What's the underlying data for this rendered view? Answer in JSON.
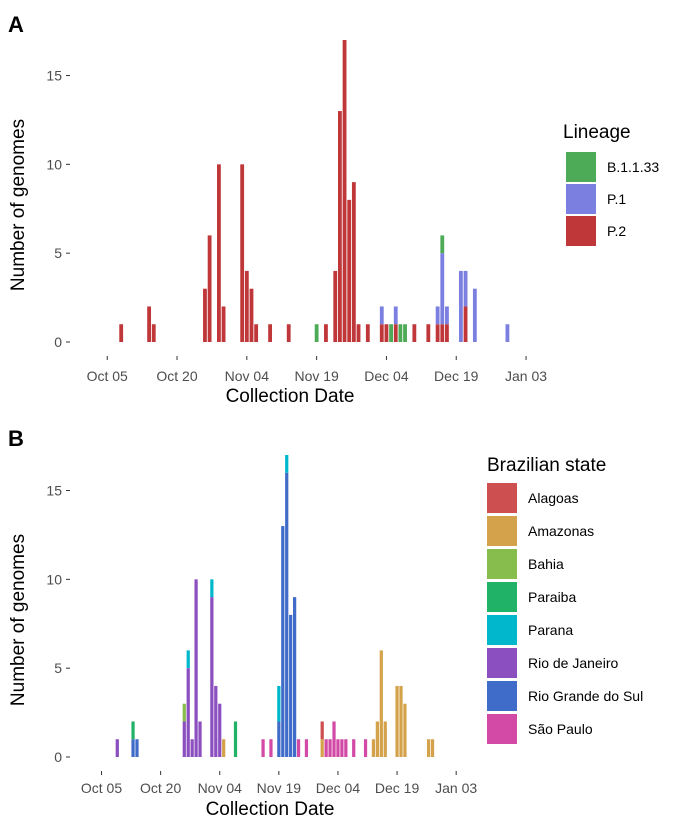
{
  "chart_data": [
    {
      "panel": "A",
      "type": "bar",
      "stacked": true,
      "xlabel": "Collection Date",
      "ylabel": "Number of genomes",
      "x_ticks": [
        "Oct 05",
        "Oct 20",
        "Nov 04",
        "Nov 19",
        "Dec 04",
        "Dec 19",
        "Jan 03"
      ],
      "y_ticks": [
        "0",
        "5",
        "10",
        "15"
      ],
      "ylim": [
        0,
        17
      ],
      "xlim": [
        "2020-09-27",
        "2021-01-06"
      ],
      "grid": false,
      "legend": {
        "title": "Lineage",
        "placement": "right",
        "entries": [
          {
            "label": "B.1.1.33",
            "color": "#4daa57"
          },
          {
            "label": "P.1",
            "color": "#7b7fe0"
          },
          {
            "label": "P.2",
            "color": "#c0373a"
          }
        ]
      },
      "bars": [
        {
          "date": "2020-10-08",
          "values": {
            "P.2": 1
          }
        },
        {
          "date": "2020-10-14",
          "values": {
            "P.2": 2
          }
        },
        {
          "date": "2020-10-15",
          "values": {
            "P.2": 1
          }
        },
        {
          "date": "2020-10-26",
          "values": {
            "P.2": 3
          }
        },
        {
          "date": "2020-10-27",
          "values": {
            "P.2": 6
          }
        },
        {
          "date": "2020-10-29",
          "values": {
            "P.2": 10
          }
        },
        {
          "date": "2020-10-30",
          "values": {
            "P.2": 2
          }
        },
        {
          "date": "2020-11-03",
          "values": {
            "P.2": 10
          }
        },
        {
          "date": "2020-11-04",
          "values": {
            "P.2": 4
          }
        },
        {
          "date": "2020-11-05",
          "values": {
            "P.2": 3
          }
        },
        {
          "date": "2020-11-06",
          "values": {
            "P.2": 1
          }
        },
        {
          "date": "2020-11-09",
          "values": {
            "P.2": 1
          }
        },
        {
          "date": "2020-11-13",
          "values": {
            "P.2": 1
          }
        },
        {
          "date": "2020-11-19",
          "values": {
            "B.1.1.33": 1
          }
        },
        {
          "date": "2020-11-21",
          "values": {
            "P.2": 1
          }
        },
        {
          "date": "2020-11-23",
          "values": {
            "P.2": 4
          }
        },
        {
          "date": "2020-11-24",
          "values": {
            "P.2": 13
          }
        },
        {
          "date": "2020-11-25",
          "values": {
            "P.2": 17
          }
        },
        {
          "date": "2020-11-26",
          "values": {
            "P.2": 8
          }
        },
        {
          "date": "2020-11-27",
          "values": {
            "P.2": 9
          }
        },
        {
          "date": "2020-11-28",
          "values": {
            "P.2": 1
          }
        },
        {
          "date": "2020-11-30",
          "values": {
            "P.2": 1
          }
        },
        {
          "date": "2020-12-03",
          "values": {
            "P.2": 1,
            "P.1": 1
          }
        },
        {
          "date": "2020-12-04",
          "values": {
            "P.2": 1
          }
        },
        {
          "date": "2020-12-05",
          "values": {
            "B.1.1.33": 1
          }
        },
        {
          "date": "2020-12-06",
          "values": {
            "P.2": 1,
            "P.1": 1
          }
        },
        {
          "date": "2020-12-07",
          "values": {
            "B.1.1.33": 1
          }
        },
        {
          "date": "2020-12-08",
          "values": {
            "B.1.1.33": 1
          }
        },
        {
          "date": "2020-12-10",
          "values": {
            "P.2": 1
          }
        },
        {
          "date": "2020-12-13",
          "values": {
            "P.2": 1
          }
        },
        {
          "date": "2020-12-15",
          "values": {
            "P.2": 1,
            "P.1": 1
          }
        },
        {
          "date": "2020-12-16",
          "values": {
            "P.2": 1,
            "P.1": 4,
            "B.1.1.33": 1
          }
        },
        {
          "date": "2020-12-17",
          "values": {
            "P.2": 1,
            "P.1": 1
          }
        },
        {
          "date": "2020-12-20",
          "values": {
            "P.1": 4
          }
        },
        {
          "date": "2020-12-21",
          "values": {
            "P.2": 2,
            "P.1": 2
          }
        },
        {
          "date": "2020-12-23",
          "values": {
            "P.1": 3
          }
        },
        {
          "date": "2020-12-30",
          "values": {
            "P.1": 1
          }
        }
      ]
    },
    {
      "panel": "B",
      "type": "bar",
      "stacked": true,
      "xlabel": "Collection Date",
      "ylabel": "Number of genomes",
      "x_ticks": [
        "Oct 05",
        "Oct 20",
        "Nov 04",
        "Nov 19",
        "Dec 04",
        "Dec 19",
        "Jan 03"
      ],
      "y_ticks": [
        "0",
        "5",
        "10",
        "15"
      ],
      "ylim": [
        0,
        17
      ],
      "xlim": [
        "2020-09-27",
        "2021-01-06"
      ],
      "grid": false,
      "legend": {
        "title": "Brazilian state",
        "placement": "right",
        "entries": [
          {
            "label": "Alagoas",
            "color": "#cd4f4f"
          },
          {
            "label": "Amazonas",
            "color": "#d4a24a"
          },
          {
            "label": "Bahia",
            "color": "#86bd4c"
          },
          {
            "label": "Paraiba",
            "color": "#20b266"
          },
          {
            "label": "Parana",
            "color": "#00b7cc"
          },
          {
            "label": "Rio de Janeiro",
            "color": "#8c4fc0"
          },
          {
            "label": "Rio Grande do Sul",
            "color": "#3f6bc9"
          },
          {
            "label": "São Paulo",
            "color": "#d24aa5"
          }
        ]
      },
      "bars": [
        {
          "date": "2020-10-09",
          "values": {
            "Rio de Janeiro": 1
          }
        },
        {
          "date": "2020-10-13",
          "values": {
            "Rio Grande do Sul": 1,
            "Paraiba": 1
          }
        },
        {
          "date": "2020-10-14",
          "values": {
            "Rio Grande do Sul": 1
          }
        },
        {
          "date": "2020-10-26",
          "values": {
            "Rio de Janeiro": 2,
            "Bahia": 1
          }
        },
        {
          "date": "2020-10-27",
          "values": {
            "Rio de Janeiro": 5,
            "Parana": 1
          }
        },
        {
          "date": "2020-10-28",
          "values": {
            "Rio de Janeiro": 1
          }
        },
        {
          "date": "2020-10-29",
          "values": {
            "Rio de Janeiro": 10
          }
        },
        {
          "date": "2020-10-30",
          "values": {
            "Rio de Janeiro": 2
          }
        },
        {
          "date": "2020-11-02",
          "values": {
            "Rio de Janeiro": 9,
            "Parana": 1
          }
        },
        {
          "date": "2020-11-03",
          "values": {
            "Rio de Janeiro": 4
          }
        },
        {
          "date": "2020-11-04",
          "values": {
            "Rio de Janeiro": 3
          }
        },
        {
          "date": "2020-11-05",
          "values": {
            "Amazonas": 1
          }
        },
        {
          "date": "2020-11-08",
          "values": {
            "Paraiba": 2
          }
        },
        {
          "date": "2020-11-15",
          "values": {
            "São Paulo": 1
          }
        },
        {
          "date": "2020-11-17",
          "values": {
            "São Paulo": 1
          }
        },
        {
          "date": "2020-11-19",
          "values": {
            "Rio Grande do Sul": 2,
            "Parana": 2
          }
        },
        {
          "date": "2020-11-20",
          "values": {
            "Rio Grande do Sul": 13
          }
        },
        {
          "date": "2020-11-21",
          "values": {
            "Rio Grande do Sul": 16,
            "Parana": 1
          }
        },
        {
          "date": "2020-11-22",
          "values": {
            "Rio Grande do Sul": 8
          }
        },
        {
          "date": "2020-11-23",
          "values": {
            "Rio Grande do Sul": 9
          }
        },
        {
          "date": "2020-11-24",
          "values": {
            "São Paulo": 1
          }
        },
        {
          "date": "2020-11-26",
          "values": {
            "São Paulo": 1
          }
        },
        {
          "date": "2020-11-30",
          "values": {
            "Alagoas": 1,
            "Amazonas": 1
          }
        },
        {
          "date": "2020-12-01",
          "values": {
            "São Paulo": 1
          }
        },
        {
          "date": "2020-12-02",
          "values": {
            "São Paulo": 1
          }
        },
        {
          "date": "2020-12-03",
          "values": {
            "São Paulo": 2
          }
        },
        {
          "date": "2020-12-04",
          "values": {
            "São Paulo": 1
          }
        },
        {
          "date": "2020-12-05",
          "values": {
            "São Paulo": 1
          }
        },
        {
          "date": "2020-12-06",
          "values": {
            "São Paulo": 1
          }
        },
        {
          "date": "2020-12-08",
          "values": {
            "São Paulo": 1
          }
        },
        {
          "date": "2020-12-11",
          "values": {
            "São Paulo": 1
          }
        },
        {
          "date": "2020-12-13",
          "values": {
            "Amazonas": 1
          }
        },
        {
          "date": "2020-12-14",
          "values": {
            "Amazonas": 2
          }
        },
        {
          "date": "2020-12-15",
          "values": {
            "Amazonas": 6
          }
        },
        {
          "date": "2020-12-16",
          "values": {
            "Amazonas": 2
          }
        },
        {
          "date": "2020-12-19",
          "values": {
            "Amazonas": 4
          }
        },
        {
          "date": "2020-12-20",
          "values": {
            "Amazonas": 4
          }
        },
        {
          "date": "2020-12-21",
          "values": {
            "Amazonas": 3
          }
        },
        {
          "date": "2020-12-27",
          "values": {
            "Amazonas": 1
          }
        },
        {
          "date": "2020-12-28",
          "values": {
            "Amazonas": 1
          }
        }
      ]
    }
  ]
}
